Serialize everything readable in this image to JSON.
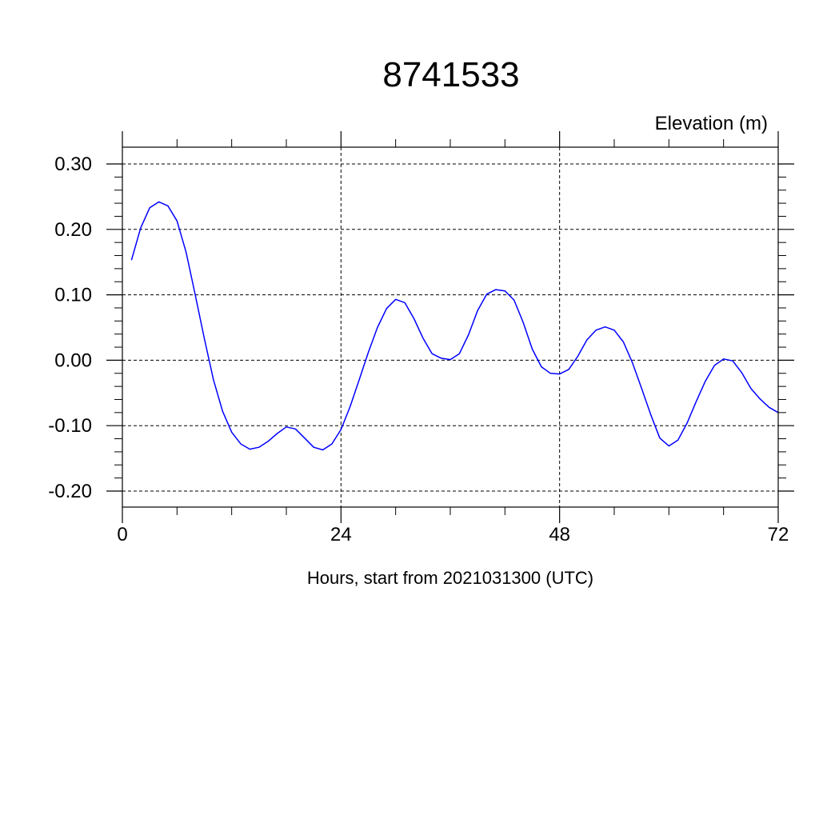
{
  "chart_data": {
    "type": "line",
    "title": "8741533",
    "ylabel": "Elevation (m)",
    "xlabel": "Hours, start from 2021031300 (UTC)",
    "xlim": [
      0,
      72
    ],
    "ylim": [
      -0.2,
      0.3
    ],
    "x_ticks": [
      0,
      24,
      48,
      72
    ],
    "x_tick_labels": [
      "0",
      "24",
      "48",
      "72"
    ],
    "y_ticks": [
      0.3,
      0.2,
      0.1,
      0.0,
      -0.1,
      -0.2
    ],
    "y_tick_labels": [
      "0.30",
      "0.20",
      "0.10",
      "0.00",
      "-0.10",
      "-0.20"
    ],
    "grid": true,
    "series": [
      {
        "color": "#0000ff",
        "x": [
          1,
          2,
          3,
          4,
          5,
          6,
          7,
          8,
          9,
          10,
          11,
          12,
          13,
          14,
          15,
          16,
          17,
          18,
          19,
          20,
          21,
          22,
          23,
          24,
          25,
          26,
          27,
          28,
          29,
          30,
          31,
          32,
          33,
          34,
          35,
          36,
          37,
          38,
          39,
          40,
          41,
          42,
          43,
          44,
          45,
          46,
          47,
          48,
          49,
          50,
          51,
          52,
          53,
          54,
          55,
          56,
          57,
          58,
          59,
          60,
          61,
          62,
          63,
          64,
          65,
          66,
          67,
          68,
          69,
          70,
          71,
          72
        ],
        "y": [
          0.153,
          0.202,
          0.233,
          0.242,
          0.236,
          0.213,
          0.165,
          0.1,
          0.033,
          -0.03,
          -0.078,
          -0.11,
          -0.128,
          -0.136,
          -0.133,
          -0.124,
          -0.112,
          -0.102,
          -0.105,
          -0.119,
          -0.133,
          -0.137,
          -0.128,
          -0.106,
          -0.071,
          -0.03,
          0.012,
          0.05,
          0.079,
          0.093,
          0.088,
          0.064,
          0.034,
          0.01,
          0.003,
          0.001,
          0.01,
          0.039,
          0.076,
          0.101,
          0.108,
          0.106,
          0.092,
          0.058,
          0.017,
          -0.01,
          -0.02,
          -0.021,
          -0.014,
          0.006,
          0.031,
          0.046,
          0.051,
          0.046,
          0.028,
          -0.004,
          -0.043,
          -0.083,
          -0.119,
          -0.131,
          -0.122,
          -0.096,
          -0.063,
          -0.032,
          -0.008,
          0.002,
          -0.001,
          -0.019,
          -0.043,
          -0.059,
          -0.072,
          -0.08
        ]
      }
    ]
  }
}
